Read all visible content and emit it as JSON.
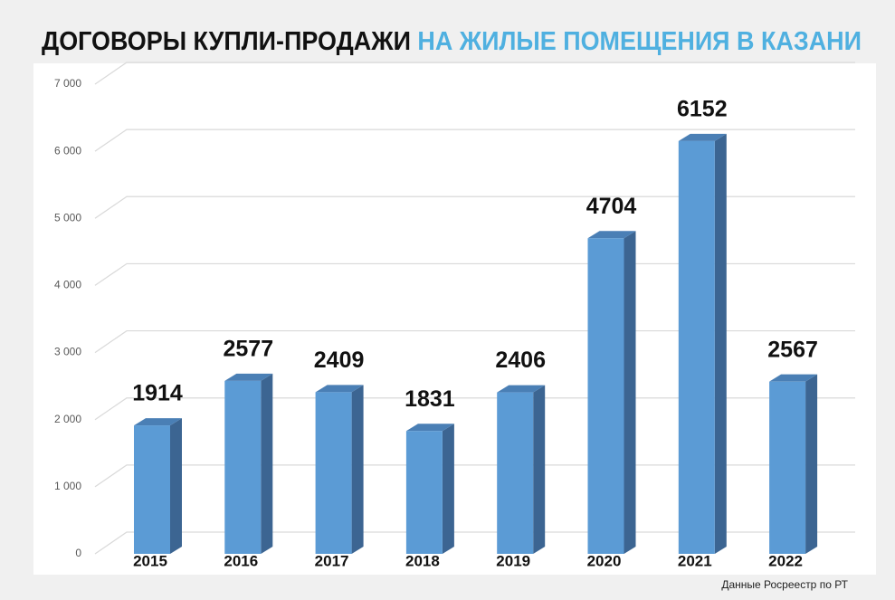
{
  "chart_data": {
    "type": "bar",
    "title": "ДОГОВОРЫ КУПЛИ-ПРОДАЖИ",
    "title_highlight": "НА ЖИЛЫЕ ПОМЕЩЕНИЯ В КАЗАНИ",
    "source": "Данные Росреестр по РТ",
    "categories": [
      "2015",
      "2016",
      "2017",
      "2018",
      "2019",
      "2020",
      "2021",
      "2022"
    ],
    "values": [
      1914,
      2577,
      2409,
      1831,
      2406,
      4704,
      6152,
      2567
    ],
    "color": "#5b9bd5",
    "ylim": [
      0,
      7000
    ],
    "yticks": [
      0,
      {
        "value": 1000,
        "label": "1 000"
      },
      {
        "value": 2000,
        "label": "2 000"
      },
      {
        "value": 3000,
        "label": "3 000"
      },
      {
        "value": 4000,
        "label": "4 000"
      },
      {
        "value": 5000,
        "label": "5 000"
      },
      {
        "value": 6000,
        "label": "6 000"
      },
      {
        "value": 7000,
        "label": "7 000"
      }
    ],
    "grid": true
  }
}
